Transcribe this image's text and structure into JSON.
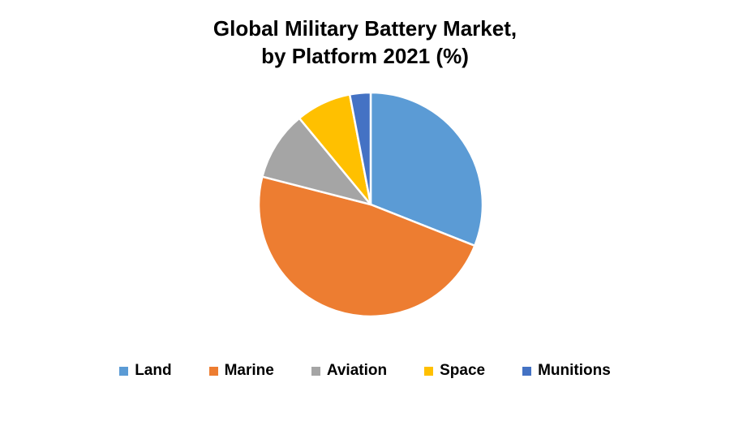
{
  "chart_data": {
    "type": "pie",
    "title_line1": "Global Military Battery Market,",
    "title_line2": "by Platform 2021 (%)",
    "legend_position": "bottom",
    "slices": [
      {
        "label": "Land",
        "value": 31,
        "color": "#5B9BD5"
      },
      {
        "label": "Marine",
        "value": 48,
        "color": "#ED7D31"
      },
      {
        "label": "Aviation",
        "value": 10,
        "color": "#A5A5A5"
      },
      {
        "label": "Space",
        "value": 8,
        "color": "#FFC000"
      },
      {
        "label": "Munitions",
        "value": 3,
        "color": "#4472C4"
      }
    ]
  }
}
